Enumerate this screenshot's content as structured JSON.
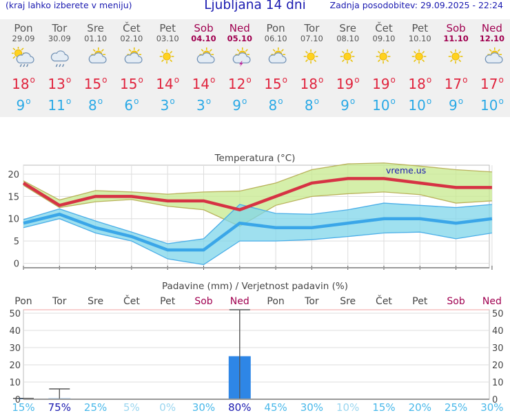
{
  "header": {
    "note": "(kraj lahko izberete v meniju)",
    "title": "Ljubljana 14 dni",
    "updated": "Zadnja posodobitev: 29.09.2025 - 22:24"
  },
  "colors": {
    "accent_text": "#1a1ab0",
    "weekend": "#a00050",
    "max_temp": "#e0233d",
    "min_temp": "#2aa9e6",
    "precip_bar": "#2e86e6"
  },
  "days": [
    {
      "name": "Pon",
      "date": "29.09",
      "weekend": false,
      "icon": "sun-cloud-rain-icon",
      "max": "18",
      "min": "9"
    },
    {
      "name": "Tor",
      "date": "30.09",
      "weekend": false,
      "icon": "cloud-rain-icon",
      "max": "13",
      "min": "11"
    },
    {
      "name": "Sre",
      "date": "01.10",
      "weekend": false,
      "icon": "sun-cloud-icon",
      "max": "15",
      "min": "8"
    },
    {
      "name": "Čet",
      "date": "02.10",
      "weekend": false,
      "icon": "sun-cloud-icon",
      "max": "15",
      "min": "6"
    },
    {
      "name": "Pet",
      "date": "03.10",
      "weekend": false,
      "icon": "sun-icon",
      "max": "14",
      "min": "3"
    },
    {
      "name": "Sob",
      "date": "04.10",
      "weekend": true,
      "icon": "sun-cloud-icon",
      "max": "14",
      "min": "3"
    },
    {
      "name": "Ned",
      "date": "05.10",
      "weekend": true,
      "icon": "sun-cloud-storm-icon",
      "max": "12",
      "min": "9"
    },
    {
      "name": "Pon",
      "date": "06.10",
      "weekend": false,
      "icon": "sun-cloud-icon",
      "max": "15",
      "min": "8"
    },
    {
      "name": "Tor",
      "date": "07.10",
      "weekend": false,
      "icon": "sun-icon",
      "max": "18",
      "min": "8"
    },
    {
      "name": "Sre",
      "date": "08.10",
      "weekend": false,
      "icon": "sun-icon",
      "max": "19",
      "min": "9"
    },
    {
      "name": "Čet",
      "date": "09.10",
      "weekend": false,
      "icon": "sun-icon",
      "max": "19",
      "min": "10"
    },
    {
      "name": "Pet",
      "date": "10.10",
      "weekend": false,
      "icon": "sun-icon",
      "max": "18",
      "min": "10"
    },
    {
      "name": "Sob",
      "date": "11.10",
      "weekend": true,
      "icon": "sun-icon",
      "max": "17",
      "min": "9"
    },
    {
      "name": "Ned",
      "date": "12.10",
      "weekend": true,
      "icon": "sun-cloud-icon",
      "max": "17",
      "min": "10"
    }
  ],
  "chart_data": [
    {
      "type": "line",
      "title": "Temperatura (°C)",
      "watermark": "vreme.us",
      "ylim": [
        -1,
        22
      ],
      "yticks": [
        0,
        5,
        10,
        15,
        20
      ],
      "series": [
        {
          "name": "max",
          "color": "#d63344",
          "values": [
            18,
            13,
            15,
            15,
            14,
            14,
            12,
            15,
            18,
            19,
            19,
            18,
            17,
            17
          ]
        },
        {
          "name": "max_upper",
          "values": [
            18.5,
            14.2,
            16.3,
            16,
            15.5,
            16,
            16.2,
            18,
            21,
            22.3,
            22.5,
            21.8,
            21,
            20.5
          ]
        },
        {
          "name": "max_lower",
          "values": [
            17.5,
            12.5,
            13.8,
            14.3,
            12.8,
            12,
            8.3,
            13,
            15,
            15.6,
            16,
            15.4,
            13.5,
            14
          ]
        },
        {
          "name": "min",
          "color": "#3aa6e8",
          "values": [
            9,
            11,
            8,
            6,
            3,
            3,
            9,
            8,
            8,
            9,
            10,
            10,
            9,
            10
          ]
        },
        {
          "name": "min_upper",
          "values": [
            9.8,
            12.2,
            9.5,
            7,
            4.4,
            5.5,
            13.2,
            11.2,
            11,
            12,
            13.5,
            13,
            12.5,
            13.2
          ]
        },
        {
          "name": "min_lower",
          "values": [
            8,
            10,
            6.8,
            5,
            1,
            -0.3,
            5,
            5,
            5.3,
            6,
            6.8,
            7,
            5.5,
            6.8
          ]
        }
      ]
    },
    {
      "type": "bar",
      "title": "Padavine (mm) / Verjetnost padavin (%)",
      "categories": [
        "Pon",
        "Tor",
        "Sre",
        "Čet",
        "Pet",
        "Sob",
        "Ned",
        "Pon",
        "Tor",
        "Sre",
        "Čet",
        "Pet",
        "Sob",
        "Ned"
      ],
      "weekend": [
        false,
        false,
        false,
        false,
        false,
        true,
        true,
        false,
        false,
        false,
        false,
        false,
        true,
        true
      ],
      "ylim": [
        0,
        52
      ],
      "yticks": [
        0,
        10,
        20,
        30,
        40,
        50
      ],
      "values": [
        0.3,
        0.5,
        0,
        0,
        0,
        0,
        25,
        0,
        0,
        0,
        0,
        0,
        0,
        0
      ],
      "error_high": [
        0.5,
        6,
        0,
        0,
        0,
        0,
        52,
        0,
        0,
        0,
        0,
        0,
        0,
        0
      ],
      "probability": [
        "15%",
        "75%",
        "25%",
        "5%",
        "0%",
        "30%",
        "80%",
        "45%",
        "30%",
        "10%",
        "15%",
        "20%",
        "25%",
        "30%"
      ]
    }
  ]
}
